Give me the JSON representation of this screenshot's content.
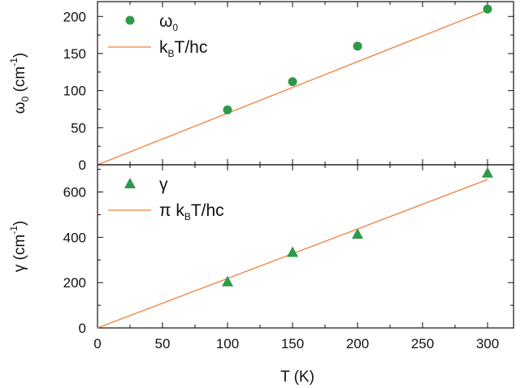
{
  "colors": {
    "line": "#f07f3c",
    "marker": "#2e9a49",
    "axis": "#111111"
  },
  "chart_data": [
    {
      "type": "scatter",
      "panel": "top",
      "xlim": [
        0,
        320
      ],
      "ylim": [
        0,
        220
      ],
      "xticks": [
        0,
        50,
        100,
        150,
        200,
        250,
        300
      ],
      "yticks": [
        0,
        50,
        100,
        150,
        200
      ],
      "ylabel_parts": [
        "ω",
        "0",
        " (cm",
        "-1",
        ")"
      ],
      "series": [
        {
          "name_parts": [
            "ω",
            "0"
          ],
          "kind": "points",
          "marker": "circle",
          "x": [
            100,
            150,
            200,
            300
          ],
          "y": [
            74,
            112,
            160,
            210
          ]
        },
        {
          "name_parts": [
            "k",
            "B",
            "T/hc"
          ],
          "kind": "line",
          "x": [
            0,
            300
          ],
          "y": [
            0,
            208.5
          ]
        }
      ],
      "legend": "top-left"
    },
    {
      "type": "scatter",
      "panel": "bottom",
      "xlim": [
        0,
        320
      ],
      "ylim": [
        0,
        720
      ],
      "xticks": [
        0,
        50,
        100,
        150,
        200,
        250,
        300
      ],
      "xtick_labels": [
        "0",
        "50",
        "100",
        "150",
        "200",
        "250",
        "300"
      ],
      "yticks": [
        0,
        200,
        400,
        600
      ],
      "xlabel": "T (K)",
      "ylabel_parts": [
        "γ (cm",
        "-1",
        ")"
      ],
      "series": [
        {
          "name_parts": [
            "γ"
          ],
          "kind": "points",
          "marker": "triangle",
          "x": [
            100,
            150,
            200,
            300
          ],
          "y": [
            205,
            335,
            415,
            685
          ]
        },
        {
          "name_parts": [
            "π k",
            "B",
            "T/hc"
          ],
          "kind": "line",
          "x": [
            0,
            300
          ],
          "y": [
            0,
            655
          ]
        }
      ],
      "legend": "top-left"
    }
  ]
}
